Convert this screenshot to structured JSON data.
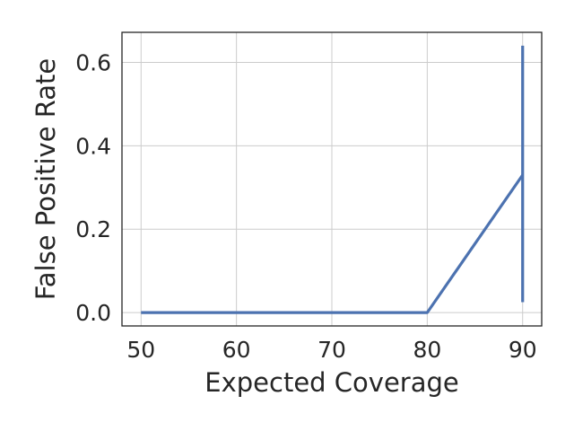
{
  "chart_data": {
    "type": "line",
    "title": "",
    "xlabel": "Expected Coverage",
    "ylabel": "False Positive Rate",
    "xlim": [
      48,
      92
    ],
    "ylim": [
      -0.032,
      0.672
    ],
    "x_ticks": [
      50,
      60,
      70,
      80,
      90
    ],
    "x_tick_labels": [
      "50",
      "60",
      "70",
      "80",
      "90"
    ],
    "y_ticks": [
      0.0,
      0.2,
      0.4,
      0.6
    ],
    "y_tick_labels": [
      "0.0",
      "0.2",
      "0.4",
      "0.6"
    ],
    "grid": true,
    "series": [
      {
        "color": "#4c72b0",
        "x": [
          50,
          60,
          70,
          80,
          90
        ],
        "y": [
          0.0,
          0.0,
          0.0,
          0.0,
          0.33
        ],
        "error_bars": [
          {
            "x": 90,
            "low": 0.025,
            "high": 0.64
          }
        ]
      }
    ]
  }
}
